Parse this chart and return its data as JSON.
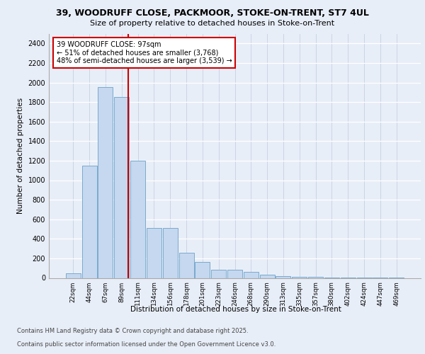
{
  "title_line1": "39, WOODRUFF CLOSE, PACKMOOR, STOKE-ON-TRENT, ST7 4UL",
  "title_line2": "Size of property relative to detached houses in Stoke-on-Trent",
  "xlabel": "Distribution of detached houses by size in Stoke-on-Trent",
  "ylabel": "Number of detached properties",
  "categories": [
    "22sqm",
    "44sqm",
    "67sqm",
    "89sqm",
    "111sqm",
    "134sqm",
    "156sqm",
    "178sqm",
    "201sqm",
    "223sqm",
    "246sqm",
    "268sqm",
    "290sqm",
    "313sqm",
    "335sqm",
    "357sqm",
    "380sqm",
    "402sqm",
    "424sqm",
    "447sqm",
    "469sqm"
  ],
  "values": [
    50,
    1150,
    1950,
    1850,
    1200,
    510,
    510,
    260,
    160,
    85,
    80,
    65,
    35,
    20,
    10,
    8,
    5,
    3,
    2,
    2,
    2
  ],
  "bar_color": "#c5d8ef",
  "bar_edge_color": "#7aaace",
  "vline_x": 3.42,
  "vline_color": "#cc0000",
  "annotation_text": "39 WOODRUFF CLOSE: 97sqm\n← 51% of detached houses are smaller (3,768)\n48% of semi-detached houses are larger (3,539) →",
  "annotation_box_color": "white",
  "annotation_box_edge": "#cc0000",
  "ylim": [
    0,
    2500
  ],
  "yticks": [
    0,
    200,
    400,
    600,
    800,
    1000,
    1200,
    1400,
    1600,
    1800,
    2000,
    2200,
    2400
  ],
  "footer_line1": "Contains HM Land Registry data © Crown copyright and database right 2025.",
  "footer_line2": "Contains public sector information licensed under the Open Government Licence v3.0.",
  "bg_color": "#e8eef8",
  "plot_bg_color": "#e8eef8",
  "grid_color": "#ffffff",
  "grid_color_x": "#c8d0e0"
}
